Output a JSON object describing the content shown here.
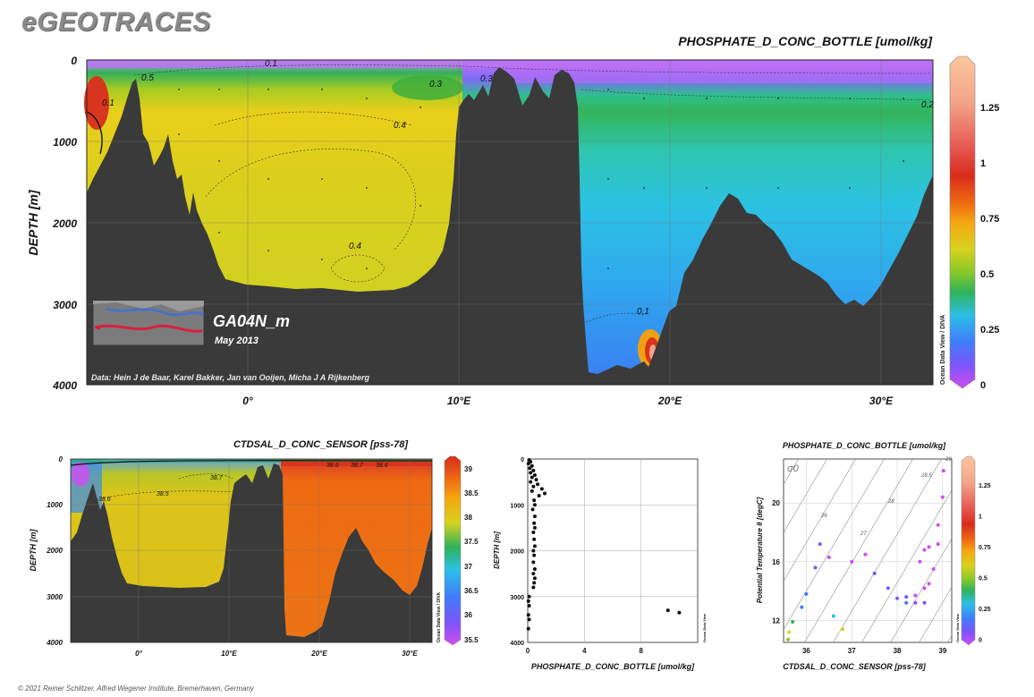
{
  "brand": "eGEOTRACES",
  "copyright": "© 2021 Reiner Schlitzer, Alfred Wegener Institute, Bremerhaven, Germany",
  "watermark": "Ocean Data View / DIVA",
  "main_section": {
    "title": "PHOSPHATE_D_CONC_BOTTLE [umol/kg]",
    "ylabel": "DEPTH [m]",
    "y_ticks": [
      "0",
      "1000",
      "2000",
      "3000",
      "4000"
    ],
    "x_ticks": [
      "0°",
      "10°E",
      "20°E",
      "30°E"
    ],
    "cruise": "GA04N_m",
    "date": "May 2013",
    "credits": "Data: Hein J de Baar, Karel Bakker, Jan van Ooijen, Micha J A Rijkenberg",
    "contours": [
      "0.1",
      "0.5",
      "0.3",
      "0.3",
      "0.4",
      "0.4",
      "0.2",
      "0.1",
      "0.1"
    ],
    "colorbar_ticks": [
      "1.25",
      "1",
      "0.75",
      "0.5",
      "0.25",
      "0"
    ]
  },
  "sal_section": {
    "title": "CTDSAL_D_CONC_SENSOR [pss-78]",
    "ylabel": "DEPTH [m]",
    "y_ticks": [
      "0",
      "1000",
      "2000",
      "3000",
      "4000"
    ],
    "x_ticks": [
      "0°",
      "10°E",
      "20°E",
      "30°E"
    ],
    "contours": [
      "38.7",
      "38.5",
      "38.6",
      "38.7",
      "38.6",
      "38.6"
    ],
    "colorbar_ticks": [
      "39",
      "38.5",
      "38",
      "37.5",
      "37",
      "36.5",
      "36",
      "35.5"
    ]
  },
  "chart_data": [
    {
      "type": "heatmap",
      "title": "PHOSPHATE_D_CONC_BOTTLE [umol/kg]",
      "xlabel": "",
      "ylabel": "DEPTH [m]",
      "xlim": [
        -7.7,
        32.7
      ],
      "ylim": [
        4000,
        0
      ],
      "colorscale_range": [
        0,
        1.45
      ],
      "colorbar_ticks": [
        0,
        0.25,
        0.5,
        0.75,
        1,
        1.25
      ],
      "regions": [
        {
          "west_of_15E_0_200m": 0.15,
          "west_of_15E_200_2800m": 0.45,
          "east_of_16E_surface": 0.02,
          "east_of_16E_1000m": 0.2,
          "east_of_16E_deep": 0.13
        }
      ]
    },
    {
      "type": "heatmap",
      "title": "CTDSAL_D_CONC_SENSOR [pss-78]",
      "xlabel": "",
      "ylabel": "DEPTH [m]",
      "xlim": [
        -7.7,
        32.7
      ],
      "ylim": [
        4000,
        0
      ],
      "colorscale_range": [
        35.5,
        39.1
      ],
      "colorbar_ticks": [
        35.5,
        36,
        36.5,
        37,
        37.5,
        38,
        38.5,
        39
      ]
    },
    {
      "type": "scatter",
      "title": "",
      "xlabel": "PHOSPHATE_D_CONC_BOTTLE [umol/kg]",
      "ylabel": "DEPTH [m]",
      "xlim": [
        0,
        12
      ],
      "ylim": [
        4000,
        0
      ],
      "x_ticks": [
        "0",
        "4",
        "8"
      ],
      "y_ticks": [
        "0",
        "1000",
        "2000",
        "3000",
        "4000"
      ],
      "points": [
        [
          0.1,
          20
        ],
        [
          0.2,
          60
        ],
        [
          0.05,
          100
        ],
        [
          0.3,
          150
        ],
        [
          0.15,
          200
        ],
        [
          0.4,
          250
        ],
        [
          0.2,
          300
        ],
        [
          0.5,
          350
        ],
        [
          0.3,
          400
        ],
        [
          0.6,
          450
        ],
        [
          0.2,
          500
        ],
        [
          0.7,
          550
        ],
        [
          0.4,
          600
        ],
        [
          1.0,
          650
        ],
        [
          0.3,
          700
        ],
        [
          1.2,
          750
        ],
        [
          0.8,
          800
        ],
        [
          0.45,
          900
        ],
        [
          0.5,
          1000
        ],
        [
          0.35,
          1100
        ],
        [
          0.5,
          1250
        ],
        [
          0.45,
          1400
        ],
        [
          0.5,
          1500
        ],
        [
          0.4,
          1600
        ],
        [
          0.45,
          1750
        ],
        [
          0.5,
          1900
        ],
        [
          0.4,
          2000
        ],
        [
          0.45,
          2100
        ],
        [
          0.4,
          2250
        ],
        [
          0.5,
          2400
        ],
        [
          0.4,
          2500
        ],
        [
          0.5,
          2600
        ],
        [
          0.45,
          2700
        ],
        [
          0.4,
          2800
        ],
        [
          0.1,
          3000
        ],
        [
          0.05,
          3100
        ],
        [
          0.1,
          3200
        ],
        [
          0.05,
          3400
        ],
        [
          0.1,
          3500
        ],
        [
          0.05,
          3700
        ],
        [
          9.9,
          3300
        ],
        [
          10.7,
          3350
        ]
      ]
    },
    {
      "type": "scatter",
      "title": "PHOSPHATE_D_CONC_BOTTLE [umol/kg]",
      "xlabel": "CTDSAL_D_CONC_SENSOR [pss-78]",
      "ylabel": "Potential Temperature θ [degC]",
      "xlim": [
        35.5,
        39.2
      ],
      "ylim": [
        10.5,
        23
      ],
      "x_ticks": [
        "36",
        "37",
        "38",
        "39"
      ],
      "y_ticks": [
        "12",
        "16",
        "20"
      ],
      "isopycnal_symbol": "σ0",
      "isopycnal_labels": [
        "26",
        "27",
        "28",
        "28.5",
        "29"
      ],
      "colorbar_ticks": [
        "1.25",
        "1",
        "0.75",
        "0.5",
        "0.25",
        "0"
      ],
      "points": [
        [
          35.6,
          10.7,
          0.55
        ],
        [
          35.62,
          11.2,
          0.7
        ],
        [
          35.7,
          11.9,
          0.5
        ],
        [
          35.9,
          12.9,
          0.3
        ],
        [
          36.0,
          13.8,
          0.28
        ],
        [
          36.6,
          12.3,
          0.35
        ],
        [
          36.8,
          11.4,
          0.7
        ],
        [
          36.2,
          15.6,
          0.2
        ],
        [
          36.3,
          17.2,
          0.12
        ],
        [
          36.5,
          16.3,
          0.1
        ],
        [
          37.0,
          16.0,
          0.08
        ],
        [
          37.3,
          16.5,
          0.06
        ],
        [
          37.5,
          15.2,
          0.15
        ],
        [
          37.8,
          14.2,
          0.15
        ],
        [
          38.0,
          13.5,
          0.17
        ],
        [
          38.2,
          13.6,
          0.17
        ],
        [
          38.4,
          13.7,
          0.1
        ],
        [
          38.6,
          13.2,
          0.12
        ],
        [
          38.4,
          13.2,
          0.2
        ],
        [
          38.2,
          13.2,
          0.22
        ],
        [
          38.6,
          14.2,
          0.06
        ],
        [
          38.7,
          14.5,
          0.05
        ],
        [
          38.8,
          15.5,
          0.04
        ],
        [
          38.9,
          17.2,
          0.03
        ],
        [
          38.7,
          17.0,
          0.05
        ],
        [
          38.9,
          18.5,
          0.03
        ],
        [
          39.0,
          20.4,
          0.02
        ],
        [
          39.02,
          22.2,
          0.02
        ],
        [
          38.5,
          16.0,
          0.06
        ],
        [
          38.6,
          16.8,
          0.05
        ]
      ]
    }
  ]
}
